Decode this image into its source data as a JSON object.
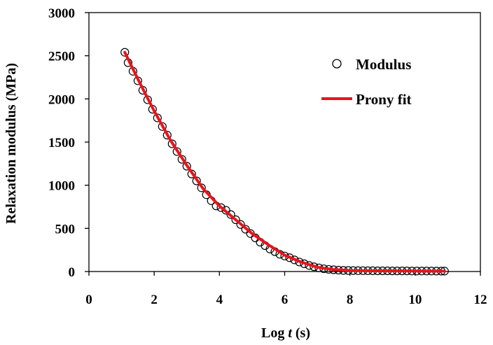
{
  "chart_data": {
    "type": "scatter",
    "title": "",
    "xlabel_prefix": "Log ",
    "xlabel_var": "t",
    "xlabel_suffix": " (s)",
    "ylabel": "Relaxation modulus (MPa)",
    "xlim": [
      0,
      12
    ],
    "ylim": [
      0,
      3000
    ],
    "x_ticks": [
      0,
      2,
      4,
      6,
      8,
      10,
      12
    ],
    "y_ticks": [
      0,
      500,
      1000,
      1500,
      2000,
      2500,
      3000
    ],
    "x_tick_labels": [
      "0",
      "2",
      "4",
      "6",
      "8",
      "10",
      "12"
    ],
    "y_tick_labels": [
      "0",
      "500",
      "1000",
      "1500",
      "2000",
      "2500",
      "3000"
    ],
    "grid": false,
    "legend_position": "top-right",
    "colors": {
      "fit": "#e8141b",
      "markers": "#000000"
    },
    "series": [
      {
        "name": "Modulus",
        "style": "open-circle-markers",
        "x": [
          1.1,
          1.2,
          1.35,
          1.5,
          1.65,
          1.8,
          1.95,
          2.1,
          2.25,
          2.4,
          2.55,
          2.7,
          2.85,
          3.0,
          3.15,
          3.3,
          3.45,
          3.6,
          3.75,
          3.9,
          4.05,
          4.2,
          4.35,
          4.5,
          4.65,
          4.8,
          4.95,
          5.1,
          5.25,
          5.4,
          5.55,
          5.7,
          5.85,
          6.0,
          6.15,
          6.3,
          6.45,
          6.6,
          6.75,
          6.9,
          7.05,
          7.2,
          7.35,
          7.5,
          7.65,
          7.8,
          7.95,
          8.1,
          8.25,
          8.4,
          8.55,
          8.7,
          8.85,
          9.0,
          9.15,
          9.3,
          9.45,
          9.6,
          9.75,
          9.9,
          10.05,
          10.2,
          10.35,
          10.5,
          10.65,
          10.8,
          10.9
        ],
        "y": [
          2540,
          2420,
          2320,
          2210,
          2100,
          1990,
          1880,
          1780,
          1680,
          1580,
          1480,
          1390,
          1300,
          1220,
          1130,
          1050,
          970,
          890,
          820,
          760,
          740,
          710,
          660,
          600,
          545,
          490,
          440,
          390,
          340,
          300,
          260,
          230,
          200,
          180,
          160,
          135,
          110,
          90,
          70,
          55,
          42,
          32,
          25,
          20,
          16,
          13,
          12,
          11,
          10,
          10,
          9,
          9,
          8,
          8,
          8,
          7,
          7,
          7,
          7,
          6,
          6,
          6,
          6,
          6,
          5,
          5,
          5
        ]
      },
      {
        "name": "Prony fit",
        "style": "line",
        "x": [
          1.1,
          1.5,
          2.0,
          2.5,
          3.0,
          3.5,
          4.0,
          4.5,
          5.0,
          5.5,
          6.0,
          6.5,
          7.0,
          7.5,
          8.0,
          8.5,
          9.0,
          9.5,
          10.0,
          10.5,
          10.9
        ],
        "y": [
          2540,
          2230,
          1860,
          1520,
          1230,
          960,
          760,
          600,
          440,
          310,
          190,
          110,
          50,
          22,
          12,
          9,
          8,
          7,
          6,
          5,
          5
        ]
      }
    ]
  }
}
